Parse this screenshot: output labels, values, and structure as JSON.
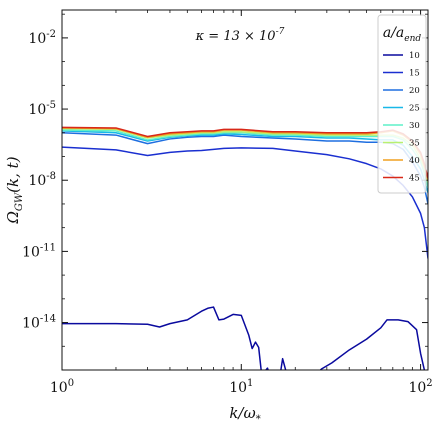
{
  "chart_data": {
    "type": "line",
    "xlabel": "k/ω*",
    "ylabel": "Ω_GW(k, t)",
    "annotation": "κ = 13 × 10^-7",
    "xscale": "log",
    "yscale": "log",
    "xlim": [
      1,
      110
    ],
    "ylim": [
      1e-16,
      0.15
    ],
    "x_ticks": [
      1,
      10,
      100
    ],
    "x_tick_labels": [
      "10^0",
      "10^1",
      "10^2"
    ],
    "y_ticks": [
      1e-14,
      1e-11,
      1e-08,
      1e-05,
      0.01
    ],
    "y_tick_labels": [
      "10^-14",
      "10^-11",
      "10^-8",
      "10^-5",
      "10^-2"
    ],
    "grid": false,
    "legend": {
      "title": "a/a_end",
      "placement": "top-right",
      "entries": [
        "10",
        "15",
        "20",
        "25",
        "30",
        "35",
        "40",
        "45"
      ]
    },
    "series": [
      {
        "name": "10",
        "color": "#0a0a9e",
        "x": [
          1,
          2,
          3,
          3.5,
          4,
          5,
          6,
          6.5,
          7,
          7.5,
          8,
          9,
          10,
          11,
          11.5,
          12,
          12.5,
          13,
          14,
          15,
          16,
          17,
          18,
          20,
          22,
          25,
          28,
          32,
          40,
          50,
          60,
          65,
          75,
          85,
          95,
          100,
          105,
          110
        ],
        "y": [
          9e-15,
          9e-15,
          8.5e-15,
          6.5e-15,
          9e-15,
          1.3e-14,
          3e-14,
          4e-14,
          4.5e-14,
          1.3e-14,
          1.4e-14,
          2.2e-14,
          2e-14,
          3e-15,
          8e-16,
          1.5e-15,
          9e-16,
          6e-17,
          1.2e-16,
          2.5e-17,
          1.5e-17,
          3e-16,
          6e-17,
          7e-17,
          4e-17,
          5e-17,
          1.1e-16,
          2e-16,
          7e-16,
          2e-15,
          6e-15,
          1.3e-14,
          1.3e-14,
          1.1e-14,
          5e-15,
          5e-16,
          1e-16,
          5e-18
        ]
      },
      {
        "name": "15",
        "color": "#1a2fd0",
        "x": [
          1,
          2,
          3,
          4,
          5,
          6,
          7,
          8,
          10,
          15,
          20,
          30,
          40,
          50,
          60,
          70,
          80,
          90,
          100,
          105,
          110
        ],
        "y": [
          2.5e-07,
          1.9e-07,
          1.1e-07,
          1.5e-07,
          1.7e-07,
          1.8e-07,
          2e-07,
          2.2e-07,
          2.3e-07,
          2.2e-07,
          1.7e-07,
          1.2e-07,
          8e-08,
          5e-08,
          3e-08,
          1.5e-08,
          6e-09,
          2e-09,
          4e-10,
          1e-10,
          5e-12
        ]
      },
      {
        "name": "20",
        "color": "#1e6ee0",
        "x": [
          1,
          2,
          3,
          4,
          5,
          6,
          7,
          8,
          10,
          15,
          20,
          30,
          40,
          50,
          60,
          70,
          80,
          90,
          100,
          105,
          110
        ],
        "y": [
          1e-06,
          8e-07,
          3.5e-07,
          5.5e-07,
          6.5e-07,
          7e-07,
          7e-07,
          8e-07,
          7e-07,
          6e-07,
          5.5e-07,
          4.5e-07,
          4.5e-07,
          4e-07,
          4e-07,
          3.5e-07,
          2e-07,
          6e-08,
          1.5e-08,
          5e-09,
          1e-09
        ]
      },
      {
        "name": "25",
        "color": "#18b8e8",
        "x": [
          1,
          2,
          3,
          4,
          5,
          6,
          7,
          8,
          10,
          15,
          20,
          30,
          40,
          50,
          60,
          70,
          80,
          90,
          100,
          105,
          110
        ],
        "y": [
          1.2e-06,
          1e-06,
          4.5e-07,
          6.5e-07,
          7.5e-07,
          8e-07,
          8e-07,
          9e-07,
          8.5e-07,
          7e-07,
          7e-07,
          6e-07,
          6e-07,
          5.5e-07,
          5e-07,
          5e-07,
          3e-07,
          1e-07,
          3e-08,
          1e-08,
          3e-09
        ]
      },
      {
        "name": "30",
        "color": "#5ef0c8",
        "x": [
          1,
          2,
          3,
          4,
          5,
          6,
          7,
          8,
          10,
          15,
          20,
          30,
          40,
          50,
          60,
          70,
          80,
          90,
          100,
          105,
          110
        ],
        "y": [
          1.3e-06,
          1.2e-06,
          5e-07,
          7e-07,
          8e-07,
          9e-07,
          9e-07,
          1e-06,
          1e-06,
          8e-07,
          8e-07,
          7e-07,
          7e-07,
          7e-07,
          7e-07,
          7e-07,
          5e-07,
          2e-07,
          6e-08,
          2e-08,
          5e-09
        ]
      },
      {
        "name": "35",
        "color": "#b8f070",
        "x": [
          1,
          2,
          3,
          4,
          5,
          6,
          7,
          8,
          10,
          15,
          20,
          30,
          40,
          50,
          60,
          70,
          80,
          90,
          100,
          105,
          110
        ],
        "y": [
          1.5e-06,
          1.4e-06,
          6e-07,
          8e-07,
          9e-07,
          1e-06,
          1e-06,
          1.1e-06,
          1.1e-06,
          9e-07,
          9e-07,
          8e-07,
          8e-07,
          8e-07,
          8e-07,
          8e-07,
          6e-07,
          3e-07,
          8e-08,
          3e-08,
          8e-09
        ]
      },
      {
        "name": "40",
        "color": "#f0a020",
        "x": [
          1,
          2,
          3,
          4,
          5,
          6,
          7,
          8,
          10,
          15,
          20,
          30,
          40,
          50,
          60,
          70,
          80,
          90,
          100,
          105,
          110
        ],
        "y": [
          1.6e-06,
          1.5e-06,
          6.5e-07,
          9e-07,
          1e-06,
          1.1e-06,
          1.1e-06,
          1.3e-06,
          1.3e-06,
          1e-06,
          1e-06,
          9e-07,
          9e-07,
          9e-07,
          1e-06,
          1.2e-06,
          8e-07,
          4e-07,
          1.2e-07,
          4e-08,
          1e-08
        ]
      },
      {
        "name": "45",
        "color": "#d82818",
        "x": [
          1,
          2,
          3,
          4,
          5,
          6,
          7,
          8,
          10,
          15,
          20,
          30,
          40,
          50,
          60,
          70,
          80,
          90,
          100,
          105,
          110
        ],
        "y": [
          1.7e-06,
          1.6e-06,
          7e-07,
          1e-06,
          1.1e-06,
          1.2e-06,
          1.2e-06,
          1.4e-06,
          1.4e-06,
          1.1e-06,
          1.1e-06,
          1e-06,
          1e-06,
          1e-06,
          1.1e-06,
          1.3e-06,
          9e-07,
          4.5e-07,
          1.5e-07,
          5e-08,
          1.2e-08
        ]
      }
    ]
  }
}
